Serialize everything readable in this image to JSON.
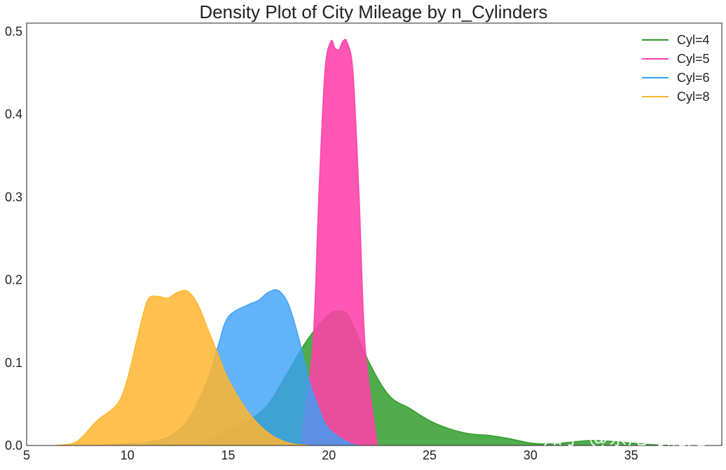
{
  "chart_data": {
    "type": "area",
    "title": "Density Plot of City Mileage by n_Cylinders",
    "xlabel": "",
    "ylabel": "",
    "xlim": [
      5,
      39.5
    ],
    "ylim": [
      0,
      0.51
    ],
    "xticks": [
      5,
      10,
      15,
      20,
      25,
      30,
      35
    ],
    "yticks": [
      0.0,
      0.1,
      0.2,
      0.3,
      0.4,
      0.5
    ],
    "ytick_labels": [
      "0.0",
      "0.1",
      "0.2",
      "0.3",
      "0.4",
      "0.5"
    ],
    "grid": false,
    "legend": {
      "placement": "top-right"
    },
    "series": [
      {
        "name": "Cyl=4",
        "color": "#2a9a25",
        "fill_opacity": 0.82,
        "x": [
          12,
          13,
          14,
          15,
          16,
          17,
          18,
          19,
          20,
          20.5,
          21,
          22,
          23,
          24,
          25,
          26,
          27,
          28,
          29,
          30,
          31,
          32,
          33,
          34,
          35,
          36,
          37
        ],
        "y": [
          0.0,
          0.002,
          0.006,
          0.018,
          0.03,
          0.05,
          0.09,
          0.13,
          0.158,
          0.162,
          0.155,
          0.1,
          0.06,
          0.045,
          0.03,
          0.02,
          0.014,
          0.012,
          0.008,
          0.003,
          0.002,
          0.004,
          0.006,
          0.005,
          0.003,
          0.001,
          0.0
        ]
      },
      {
        "name": "Cyl=5",
        "color": "#ff40a8",
        "fill_opacity": 0.88,
        "x": [
          18.6,
          19.2,
          19.5,
          19.8,
          20.1,
          20.3,
          20.5,
          20.7,
          20.9,
          21.2,
          21.5,
          21.8,
          22.4
        ],
        "y": [
          0.0,
          0.12,
          0.3,
          0.45,
          0.488,
          0.48,
          0.478,
          0.488,
          0.487,
          0.45,
          0.3,
          0.12,
          0.0
        ]
      },
      {
        "name": "Cyl=6",
        "color": "#3ba0f8",
        "fill_opacity": 0.8,
        "x": [
          8.6,
          10,
          11,
          12,
          13,
          14,
          14.5,
          15,
          16,
          16.5,
          17,
          17.5,
          18,
          18.5,
          19,
          19.5,
          20,
          21,
          21.5
        ],
        "y": [
          0.0,
          0.002,
          0.004,
          0.01,
          0.03,
          0.08,
          0.12,
          0.155,
          0.17,
          0.175,
          0.185,
          0.187,
          0.17,
          0.13,
          0.08,
          0.045,
          0.02,
          0.003,
          0.0
        ]
      },
      {
        "name": "Cyl=8",
        "color": "#ffb52e",
        "fill_opacity": 0.85,
        "x": [
          6.5,
          7.5,
          8.5,
          9.5,
          10,
          10.5,
          11,
          11.5,
          12,
          12.5,
          13,
          13.5,
          14,
          14.5,
          15,
          16,
          17,
          18,
          19
        ],
        "y": [
          0.0,
          0.005,
          0.03,
          0.05,
          0.08,
          0.13,
          0.175,
          0.18,
          0.178,
          0.185,
          0.186,
          0.17,
          0.14,
          0.11,
          0.08,
          0.04,
          0.015,
          0.003,
          0.0
        ]
      }
    ],
    "watermark": "知乎 @茶尾可妮兔"
  }
}
